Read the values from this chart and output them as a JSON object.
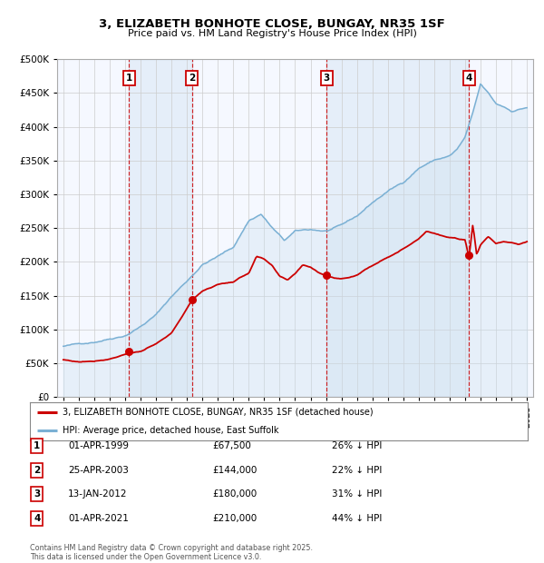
{
  "title_line1": "3, ELIZABETH BONHOTE CLOSE, BUNGAY, NR35 1SF",
  "title_line2": "Price paid vs. HM Land Registry's House Price Index (HPI)",
  "legend_line1": "3, ELIZABETH BONHOTE CLOSE, BUNGAY, NR35 1SF (detached house)",
  "legend_line2": "HPI: Average price, detached house, East Suffolk",
  "footer": "Contains HM Land Registry data © Crown copyright and database right 2025.\nThis data is licensed under the Open Government Licence v3.0.",
  "sale_color": "#cc0000",
  "hpi_color": "#7ab0d4",
  "hpi_fill_color": "#cce0f0",
  "sale_points": [
    {
      "x": 1999.25,
      "price": 67500,
      "label": "1"
    },
    {
      "x": 2003.33,
      "price": 144000,
      "label": "2"
    },
    {
      "x": 2012.04,
      "price": 180000,
      "label": "3"
    },
    {
      "x": 2021.25,
      "price": 210000,
      "label": "4"
    }
  ],
  "hpi_anchors_x": [
    1995.0,
    1996.0,
    1997.0,
    1998.0,
    1999.0,
    2000.0,
    2001.0,
    2002.0,
    2003.0,
    2004.0,
    2005.0,
    2006.0,
    2007.0,
    2007.8,
    2008.5,
    2009.3,
    2010.0,
    2011.0,
    2012.0,
    2013.0,
    2014.0,
    2015.0,
    2016.0,
    2017.0,
    2018.0,
    2019.0,
    2020.0,
    2020.5,
    2021.0,
    2021.5,
    2022.0,
    2022.5,
    2023.0,
    2023.5,
    2024.0,
    2024.5,
    2025.0
  ],
  "hpi_anchors_y": [
    75000,
    78000,
    82000,
    88000,
    94000,
    108000,
    125000,
    152000,
    175000,
    200000,
    212000,
    225000,
    265000,
    275000,
    255000,
    235000,
    248000,
    250000,
    248000,
    255000,
    268000,
    288000,
    305000,
    318000,
    340000,
    352000,
    358000,
    368000,
    385000,
    420000,
    462000,
    448000,
    432000,
    428000,
    422000,
    425000,
    428000
  ],
  "red_anchors_x": [
    1995.0,
    1996.0,
    1997.0,
    1998.0,
    1999.25,
    2000.0,
    2001.0,
    2002.0,
    2003.33,
    2004.0,
    2005.0,
    2006.0,
    2007.0,
    2007.5,
    2008.0,
    2008.5,
    2009.0,
    2009.5,
    2010.0,
    2010.5,
    2011.0,
    2011.5,
    2012.04,
    2012.5,
    2013.0,
    2013.5,
    2014.0,
    2015.0,
    2016.0,
    2017.0,
    2018.0,
    2018.5,
    2019.0,
    2019.5,
    2020.0,
    2020.5,
    2021.0,
    2021.25,
    2021.5,
    2021.75,
    2022.0,
    2022.5,
    2023.0,
    2023.5,
    2024.0,
    2024.5,
    2025.0
  ],
  "red_anchors_y": [
    55000,
    52000,
    54000,
    58000,
    67500,
    70000,
    80000,
    95000,
    144000,
    158000,
    168000,
    172000,
    185000,
    210000,
    205000,
    195000,
    178000,
    172000,
    182000,
    195000,
    192000,
    185000,
    180000,
    177000,
    176000,
    178000,
    182000,
    196000,
    210000,
    222000,
    238000,
    250000,
    247000,
    243000,
    240000,
    238000,
    236000,
    210000,
    260000,
    215000,
    230000,
    242000,
    232000,
    235000,
    234000,
    232000,
    235000
  ],
  "table_rows": [
    {
      "num": "1",
      "date": "01-APR-1999",
      "price": "£67,500",
      "note": "26% ↓ HPI"
    },
    {
      "num": "2",
      "date": "25-APR-2003",
      "price": "£144,000",
      "note": "22% ↓ HPI"
    },
    {
      "num": "3",
      "date": "13-JAN-2012",
      "price": "£180,000",
      "note": "31% ↓ HPI"
    },
    {
      "num": "4",
      "date": "01-APR-2021",
      "price": "£210,000",
      "note": "44% ↓ HPI"
    }
  ],
  "ylim": [
    0,
    500000
  ],
  "yticks": [
    0,
    50000,
    100000,
    150000,
    200000,
    250000,
    300000,
    350000,
    400000,
    450000,
    500000
  ],
  "xstart": 1994.6,
  "xend": 2025.4
}
